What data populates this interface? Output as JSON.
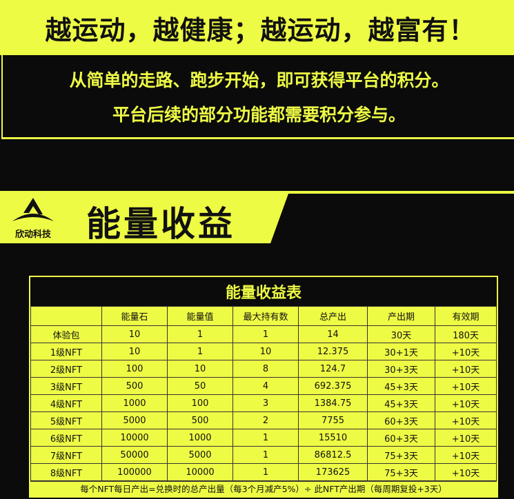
{
  "headline": "越运动，越健康；越运动，越富有！",
  "intro": [
    "从简单的走路、跑步开始，即可获得平台的积分。",
    "平台后续的部分功能都需要积分参与。"
  ],
  "section": {
    "logo_text": "欣动科技",
    "title": "能量收益"
  },
  "colors": {
    "accent": "#eefb45",
    "background": "#0b0b0b"
  },
  "table": {
    "title": "能量收益表",
    "headers": [
      "",
      "能量石",
      "能量值",
      "最大持有数",
      "总产出",
      "产出期",
      "有效期"
    ],
    "rows": [
      [
        "体验包",
        "10",
        "1",
        "1",
        "14",
        "30天",
        "180天"
      ],
      [
        "1级NFT",
        "10",
        "1",
        "10",
        "12.375",
        "30+1天",
        "+10天"
      ],
      [
        "2级NFT",
        "100",
        "10",
        "8",
        "124.7",
        "30+3天",
        "+10天"
      ],
      [
        "3级NFT",
        "500",
        "50",
        "4",
        "692.375",
        "45+3天",
        "+10天"
      ],
      [
        "4级NFT",
        "1000",
        "100",
        "3",
        "1384.75",
        "45+3天",
        "+10天"
      ],
      [
        "5级NFT",
        "5000",
        "500",
        "2",
        "7755",
        "60+3天",
        "+10天"
      ],
      [
        "6级NFT",
        "10000",
        "1000",
        "1",
        "15510",
        "60+3天",
        "+10天"
      ],
      [
        "7级NFT",
        "50000",
        "5000",
        "1",
        "86812.5",
        "75+3天",
        "+10天"
      ],
      [
        "8级NFT",
        "100000",
        "10000",
        "1",
        "173625",
        "75+3天",
        "+10天"
      ]
    ],
    "footnote": "每个NFT每日产出=兑换时的总产出量（每3个月减产5%）÷ 此NFT产出期（每周期复投+3天）"
  }
}
